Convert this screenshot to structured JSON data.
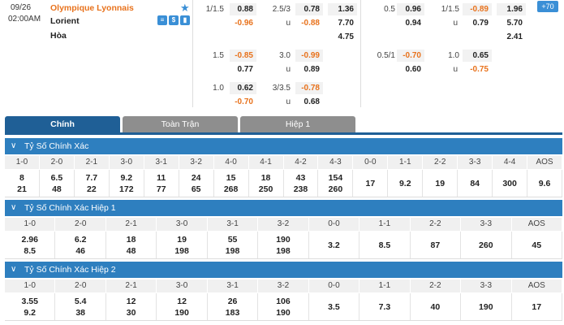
{
  "match": {
    "date": "09/26",
    "time": "02:00AM",
    "home": "Olympique Lyonnais",
    "away": "Lorient",
    "draw": "Hòa",
    "more": "+70",
    "icons": [
      "star-icon",
      "list-icon",
      "dollar-icon",
      "chart-icon"
    ]
  },
  "odds": {
    "fullHandicap": [
      {
        "line": "1/1.5",
        "home": "0.88",
        "away": "-0.96"
      },
      {
        "line": "1.5",
        "home": "-0.85",
        "away": "0.77"
      },
      {
        "line": "1.0",
        "home": "0.62",
        "away": "-0.70"
      }
    ],
    "fullOU": [
      {
        "line": "2.5/3",
        "over": "0.78",
        "u": "u",
        "under": "-0.88"
      },
      {
        "line": "3.0",
        "over": "-0.99",
        "u": "u",
        "under": "0.89"
      },
      {
        "line": "3/3.5",
        "over": "-0.78",
        "u": "u",
        "under": "0.68"
      }
    ],
    "full1x2": [
      "1.36",
      "7.70",
      "4.75"
    ],
    "halfHandicap": [
      {
        "line": "0.5",
        "home": "0.96",
        "away": "0.94"
      },
      {
        "line": "0.5/1",
        "home": "-0.70",
        "away": "0.60"
      }
    ],
    "halfOU": [
      {
        "line": "1/1.5",
        "over": "-0.89",
        "u": "u",
        "under": "0.79"
      },
      {
        "line": "1.0",
        "over": "0.65",
        "u": "u",
        "under": "-0.75"
      }
    ],
    "half1x2": [
      "1.96",
      "5.70",
      "2.41"
    ]
  },
  "tabs": [
    "Chính",
    "Toàn Trận",
    "Hiệp 1"
  ],
  "sections": [
    {
      "title": "Tỷ Số Chính Xác",
      "headers": [
        "1-0",
        "2-0",
        "2-1",
        "3-0",
        "3-1",
        "3-2",
        "4-0",
        "4-1",
        "4-2",
        "4-3",
        "0-0",
        "1-1",
        "2-2",
        "3-3",
        "4-4",
        "AOS"
      ],
      "rows": [
        [
          "8",
          "21"
        ],
        [
          "6.5",
          "48"
        ],
        [
          "7.7",
          "22"
        ],
        [
          "9.2",
          "172"
        ],
        [
          "11",
          "77"
        ],
        [
          "24",
          "65"
        ],
        [
          "15",
          "268"
        ],
        [
          "18",
          "250"
        ],
        [
          "43",
          "238"
        ],
        [
          "154",
          "260"
        ],
        [
          "17"
        ],
        [
          "9.2"
        ],
        [
          "19"
        ],
        [
          "84"
        ],
        [
          "300"
        ],
        [
          "9.6"
        ]
      ]
    },
    {
      "title": "Tỷ Số Chính Xác Hiệp 1",
      "headers": [
        "1-0",
        "2-0",
        "2-1",
        "3-0",
        "3-1",
        "3-2",
        "0-0",
        "1-1",
        "2-2",
        "3-3",
        "AOS"
      ],
      "rows": [
        [
          "2.96",
          "8.5"
        ],
        [
          "6.2",
          "46"
        ],
        [
          "18",
          "48"
        ],
        [
          "19",
          "198"
        ],
        [
          "55",
          "198"
        ],
        [
          "190",
          "198"
        ],
        [
          "3.2"
        ],
        [
          "8.5"
        ],
        [
          "87"
        ],
        [
          "260"
        ],
        [
          "45"
        ]
      ]
    },
    {
      "title": "Tỷ Số Chính Xác Hiệp 2",
      "headers": [
        "1-0",
        "2-0",
        "2-1",
        "3-0",
        "3-1",
        "3-2",
        "0-0",
        "1-1",
        "2-2",
        "3-3",
        "AOS"
      ],
      "rows": [
        [
          "3.55",
          "9.2"
        ],
        [
          "5.4",
          "38"
        ],
        [
          "12",
          "30"
        ],
        [
          "12",
          "190"
        ],
        [
          "26",
          "183"
        ],
        [
          "106",
          "190"
        ],
        [
          "3.5"
        ],
        [
          "7.3"
        ],
        [
          "40"
        ],
        [
          "190"
        ],
        [
          "17"
        ]
      ]
    }
  ],
  "colors": {
    "accent": "#2e7fbf",
    "tabActive": "#1f5f96",
    "negative": "#e8721c"
  }
}
